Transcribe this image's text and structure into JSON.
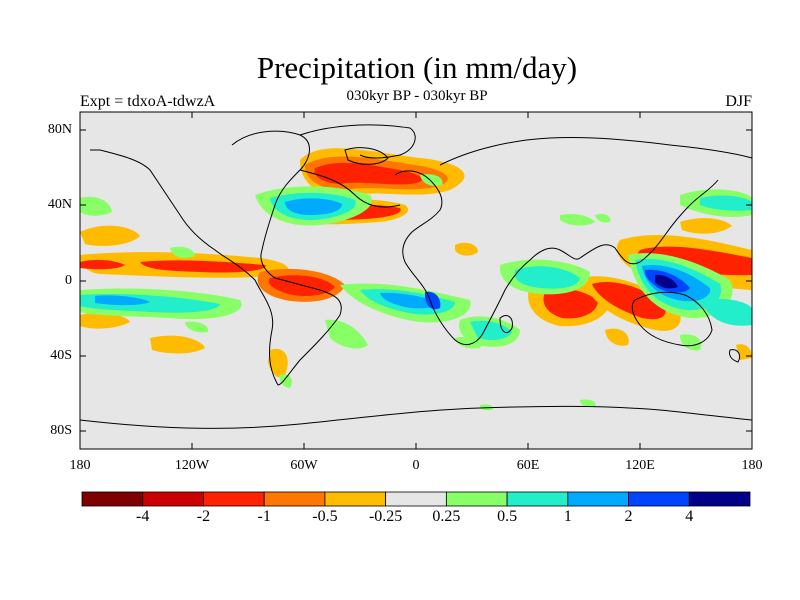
{
  "chart_data": {
    "type": "heatmap",
    "title": "Precipitation (in mm/day)",
    "subtitle": "030kyr BP - 030kyr BP",
    "left_label": "Expt = tdxoA-tdwzA",
    "right_label": "DJF",
    "x_ticks": [
      "180",
      "120W",
      "60W",
      "0",
      "60E",
      "120E",
      "180"
    ],
    "y_ticks": [
      "80N",
      "40N",
      "0",
      "40S",
      "80S"
    ],
    "xlim": [
      -180,
      180
    ],
    "ylim": [
      -90,
      90
    ],
    "colorbar": {
      "levels": [
        "-4",
        "-2",
        "-1",
        "-0.5",
        "-0.25",
        "0.25",
        "0.5",
        "1",
        "2",
        "4"
      ],
      "colors": [
        "#7f0000",
        "#cc0000",
        "#ff2200",
        "#ff7700",
        "#ffbb00",
        "#e6e6e6",
        "#88ff66",
        "#22eecc",
        "#00aaff",
        "#0044ff",
        "#000088"
      ]
    }
  }
}
